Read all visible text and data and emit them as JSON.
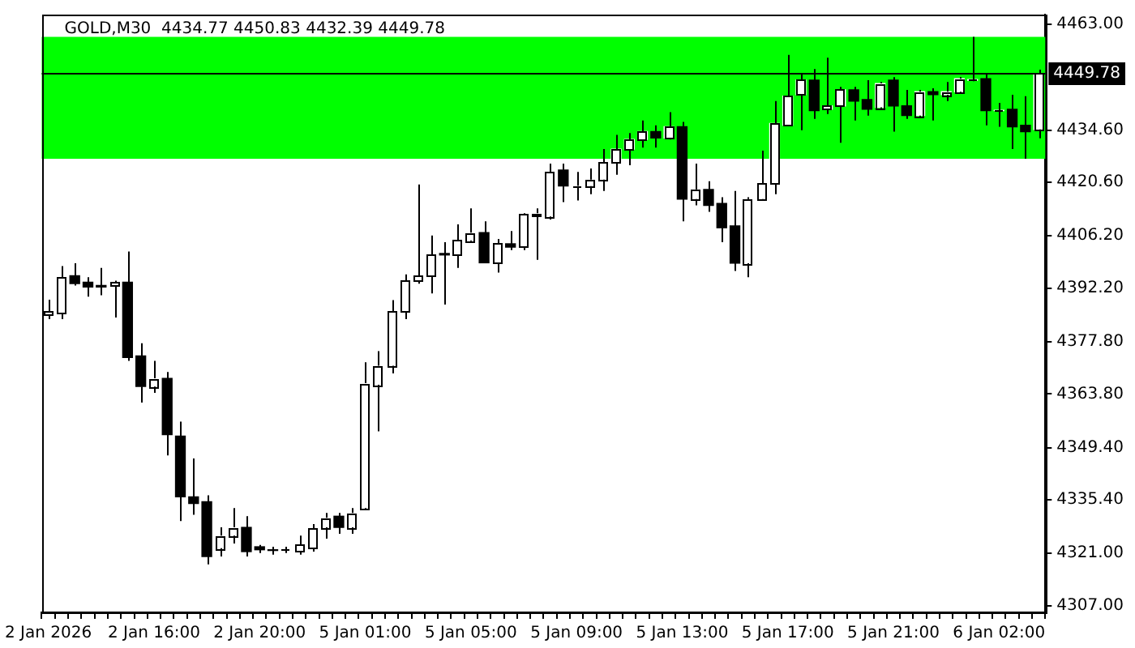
{
  "chart_data": {
    "type": "candlestick",
    "title": "GOLD,M30  4434.77 4450.83 4432.39 4449.78",
    "categories": [
      "2 Jan 2026",
      null,
      null,
      null,
      null,
      null,
      null,
      null,
      "2 Jan 16:00",
      null,
      null,
      null,
      null,
      null,
      null,
      null,
      "2 Jan 20:00",
      null,
      null,
      null,
      null,
      null,
      null,
      null,
      "5 Jan 01:00",
      null,
      null,
      null,
      null,
      null,
      null,
      null,
      "5 Jan 05:00",
      null,
      null,
      null,
      null,
      null,
      null,
      null,
      "5 Jan 09:00",
      null,
      null,
      null,
      null,
      null,
      null,
      null,
      "5 Jan 13:00",
      null,
      null,
      null,
      null,
      null,
      null,
      null,
      "5 Jan 17:00",
      null,
      null,
      null,
      null,
      null,
      null,
      null,
      "5 Jan 21:00",
      null,
      null,
      null,
      null,
      null,
      null,
      null,
      "6 Jan 02:00",
      null,
      null,
      null
    ],
    "ohlc": [
      [
        4385.2,
        4389.1,
        4383.9,
        4386.0
      ],
      [
        4385.6,
        4398.1,
        4383.9,
        4395.1
      ],
      [
        4395.5,
        4398.9,
        4392.9,
        4393.4
      ],
      [
        4393.8,
        4395.1,
        4389.9,
        4392.5
      ],
      [
        4392.9,
        4397.6,
        4390.3,
        4392.5
      ],
      [
        4392.9,
        4394.2,
        4384.3,
        4393.8
      ],
      [
        4393.8,
        4402.0,
        4372.7,
        4373.6
      ],
      [
        4374.0,
        4377.4,
        4361.5,
        4365.8
      ],
      [
        4365.8,
        4372.7,
        4364.1,
        4368.0
      ],
      [
        4368.0,
        4369.7,
        4347.3,
        4352.9
      ],
      [
        4352.5,
        4356.4,
        4329.7,
        4336.2
      ],
      [
        4336.2,
        4346.5,
        4331.4,
        4334.4
      ],
      [
        4334.9,
        4336.6,
        4318.1,
        4320.2
      ],
      [
        4322.4,
        4328.0,
        4320.2,
        4325.8
      ],
      [
        4325.8,
        4333.2,
        4323.7,
        4328.0
      ],
      [
        4328.0,
        4331.0,
        4320.2,
        4321.5
      ],
      [
        4322.8,
        4323.3,
        4321.1,
        4322.0
      ],
      [
        4322.0,
        4322.8,
        4320.7,
        4321.8
      ],
      [
        4322.0,
        4322.8,
        4321.1,
        4322.1
      ],
      [
        4321.5,
        4325.8,
        4320.7,
        4323.3
      ],
      [
        4322.4,
        4328.9,
        4321.5,
        4327.6
      ],
      [
        4328.0,
        4331.9,
        4325.0,
        4330.6
      ],
      [
        4331.0,
        4331.9,
        4326.3,
        4328.0
      ],
      [
        4328.0,
        4333.2,
        4326.3,
        4331.9
      ],
      [
        4333.2,
        4372.3,
        4333.0,
        4366.7
      ],
      [
        4366.3,
        4375.3,
        4353.8,
        4371.4
      ],
      [
        4371.4,
        4389.0,
        4369.3,
        4386.0
      ],
      [
        4386.0,
        4395.9,
        4383.9,
        4394.2
      ],
      [
        4394.2,
        4420.0,
        4393.4,
        4395.5
      ],
      [
        4395.5,
        4406.3,
        4390.8,
        4401.1
      ],
      [
        4401.5,
        4404.5,
        4387.8,
        4401.1
      ],
      [
        4401.1,
        4409.3,
        4397.6,
        4405.0
      ],
      [
        4405.0,
        4413.6,
        4404.8,
        4407.1
      ],
      [
        4407.1,
        4410.1,
        4398.9,
        4399.0
      ],
      [
        4398.9,
        4405.4,
        4396.4,
        4404.1
      ],
      [
        4404.1,
        4407.5,
        4402.4,
        4403.2
      ],
      [
        4403.2,
        4412.3,
        4402.4,
        4412.0
      ],
      [
        4412.0,
        4413.6,
        4399.8,
        4412.3
      ],
      [
        4411.4,
        4425.6,
        4410.6,
        4423.4
      ],
      [
        4423.9,
        4425.6,
        4415.3,
        4419.6
      ],
      [
        4419.6,
        4423.4,
        4415.7,
        4419.7
      ],
      [
        4419.6,
        4424.3,
        4417.4,
        4421.3
      ],
      [
        4421.3,
        4429.5,
        4418.3,
        4426.0
      ],
      [
        4426.0,
        4433.3,
        4422.6,
        4429.5
      ],
      [
        4429.5,
        4433.8,
        4425.2,
        4432.1
      ],
      [
        4432.1,
        4437.2,
        4429.9,
        4434.2
      ],
      [
        4434.2,
        4435.9,
        4429.9,
        4432.5
      ],
      [
        4432.5,
        4439.4,
        4432.1,
        4435.5
      ],
      [
        4435.5,
        4436.8,
        4410.1,
        4416.1
      ],
      [
        4416.1,
        4425.6,
        4414.4,
        4418.7
      ],
      [
        4418.7,
        4420.9,
        4412.7,
        4414.4
      ],
      [
        4414.9,
        4416.6,
        4404.5,
        4408.4
      ],
      [
        4408.9,
        4418.3,
        4396.8,
        4398.9
      ],
      [
        4398.9,
        4416.6,
        4395.1,
        4416.1
      ],
      [
        4416.1,
        4429.1,
        4415.9,
        4420.4
      ],
      [
        4420.4,
        4442.4,
        4417.4,
        4436.4
      ],
      [
        4435.9,
        4454.8,
        4435.7,
        4443.7
      ],
      [
        4444.1,
        4449.7,
        4434.6,
        4448.0
      ],
      [
        4448.0,
        4451.0,
        4437.6,
        4439.8
      ],
      [
        4440.2,
        4454.0,
        4438.9,
        4441.1
      ],
      [
        4441.1,
        4446.2,
        4431.2,
        4445.4
      ],
      [
        4445.4,
        4446.2,
        4437.2,
        4442.4
      ],
      [
        4442.8,
        4448.0,
        4438.5,
        4440.2
      ],
      [
        4440.7,
        4447.5,
        4440.2,
        4447.1
      ],
      [
        4448.0,
        4448.8,
        4434.2,
        4441.1
      ],
      [
        4441.1,
        4445.4,
        4437.6,
        4438.5
      ],
      [
        4438.5,
        4445.4,
        4438.1,
        4444.9
      ],
      [
        4444.9,
        4445.8,
        4437.2,
        4444.1
      ],
      [
        4444.1,
        4447.5,
        4442.4,
        4444.9
      ],
      [
        4444.9,
        4448.8,
        4444.5,
        4448.4
      ],
      [
        4448.0,
        4459.6,
        4447.7,
        4448.2
      ],
      [
        4448.4,
        4449.7,
        4435.9,
        4439.8
      ],
      [
        4439.8,
        4441.9,
        4435.5,
        4439.9
      ],
      [
        4440.2,
        4444.1,
        4429.5,
        4435.5
      ],
      [
        4435.9,
        4443.7,
        4426.9,
        4434.2
      ],
      [
        4434.77,
        4450.83,
        4432.39,
        4449.78
      ]
    ],
    "ylim": [
      4305.2,
      4465.6
    ],
    "yticks": [
      {
        "value": 4463,
        "label": "4463.00"
      },
      {
        "value": 4434.6,
        "label": "4434.60"
      },
      {
        "value": 4420.6,
        "label": "4420.60"
      },
      {
        "value": 4406.2,
        "label": "4406.20"
      },
      {
        "value": 4392.2,
        "label": "4392.20"
      },
      {
        "value": 4377.8,
        "label": "4377.80"
      },
      {
        "value": 4363.8,
        "label": "4363.80"
      },
      {
        "value": 4349.4,
        "label": "4349.40"
      },
      {
        "value": 4335.4,
        "label": "4335.40"
      },
      {
        "value": 4321,
        "label": "4321.00"
      },
      {
        "value": 4307,
        "label": "4307.00"
      }
    ],
    "bands": [
      {
        "axis": "y",
        "from": 4426.9,
        "to": 4459.6,
        "color": "#00ff00"
      }
    ],
    "ref_lines": [
      {
        "axis": "y",
        "value": 4449.78,
        "label": "4449.78",
        "color": "#000000"
      }
    ]
  }
}
